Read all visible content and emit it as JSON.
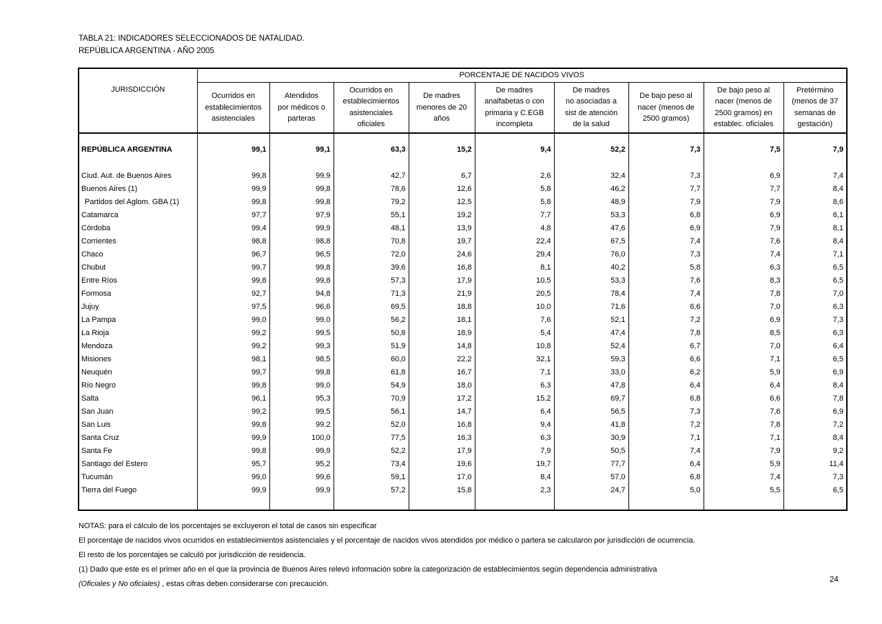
{
  "title": {
    "line1": "TABLA 21: INDICADORES SELECCIONADOS DE NATALIDAD.",
    "line2": "REPÚBLICA  ARGENTINA - AÑO 2005"
  },
  "table": {
    "col1_header": "JURISDICCIÓN",
    "group_header": "PORCENTAJE DE NACIDOS VIVOS",
    "columns": [
      "Ocurridos en\nestablecimientos\nasistenciales",
      "Atendidos\npor médicos o\nparteras",
      "Ocurridos en\nestablecimientos\nasistenciales\noficiales",
      "De madres\nmenores de 20\naños",
      "De madres\nanalfabetas o con\nprimaria y C.EGB\nincompleta",
      "De madres\nno asociadas a\nsist de atención\nde la salud",
      "De bajo peso al\nnacer (menos de\n2500 gramos)",
      "De bajo peso al\nnacer (menos de\n2500 gramos) en\nestablec. oficiales",
      "Pretérmino\n(menos de 37\nsemanas de\ngestación)"
    ],
    "total_row": {
      "label": "REPÚBLICA ARGENTINA",
      "values": [
        "99,1",
        "99,1",
        "63,3",
        "15,2",
        "9,4",
        "52,2",
        "7,3",
        "7,5",
        "7,9"
      ]
    },
    "rows": [
      {
        "label": "Ciud. Aut. de  Buenos Aires",
        "indent": false,
        "values": [
          "99,8",
          "99,9",
          "42,7",
          "6,7",
          "2,6",
          "32,4",
          "7,3",
          "6,9",
          "7,4"
        ]
      },
      {
        "label": "Buenos Aires (1)",
        "indent": false,
        "values": [
          "99,9",
          "99,8",
          "78,6",
          "12,6",
          "5,8",
          "46,2",
          "7,7",
          "7,7",
          "8,4"
        ]
      },
      {
        "label": "Partidos del Aglom. GBA (1)",
        "indent": true,
        "values": [
          "99,8",
          "99,8",
          "79,2",
          "12,5",
          "5,8",
          "48,9",
          "7,9",
          "7,9",
          "8,6"
        ]
      },
      {
        "label": "Catamarca",
        "indent": false,
        "values": [
          "97,7",
          "97,9",
          "55,1",
          "19,2",
          "7,7",
          "53,3",
          "6,8",
          "6,9",
          "6,1"
        ]
      },
      {
        "label": "Córdoba",
        "indent": false,
        "values": [
          "99,4",
          "99,9",
          "48,1",
          "13,9",
          "4,8",
          "47,6",
          "6,9",
          "7,9",
          "8,1"
        ]
      },
      {
        "label": "Corrientes",
        "indent": false,
        "values": [
          "98,8",
          "98,8",
          "70,8",
          "19,7",
          "22,4",
          "67,5",
          "7,4",
          "7,6",
          "8,4"
        ]
      },
      {
        "label": "Chaco",
        "indent": false,
        "values": [
          "96,7",
          "96,5",
          "72,0",
          "24,6",
          "29,4",
          "76,0",
          "7,3",
          "7,4",
          "7,1"
        ]
      },
      {
        "label": "Chubut",
        "indent": false,
        "values": [
          "99,7",
          "99,8",
          "39,6",
          "16,8",
          "8,1",
          "40,2",
          "5,8",
          "6,3",
          "6,5"
        ]
      },
      {
        "label": "Entre Ríos",
        "indent": false,
        "values": [
          "99,8",
          "99,8",
          "57,3",
          "17,9",
          "10,5",
          "53,3",
          "7,6",
          "8,3",
          "6,5"
        ]
      },
      {
        "label": "Formosa",
        "indent": false,
        "values": [
          "92,7",
          "94,8",
          "71,3",
          "21,9",
          "20,5",
          "78,4",
          "7,4",
          "7,8",
          "7,0"
        ]
      },
      {
        "label": "Jujuy",
        "indent": false,
        "values": [
          "97,5",
          "96,6",
          "69,5",
          "18,8",
          "10,0",
          "71,6",
          "6,6",
          "7,0",
          "6,3"
        ]
      },
      {
        "label": "La Pampa",
        "indent": false,
        "values": [
          "99,0",
          "99,0",
          "56,2",
          "18,1",
          "7,6",
          "52,1",
          "7,2",
          "6,9",
          "7,3"
        ]
      },
      {
        "label": "La Rioja",
        "indent": false,
        "values": [
          "99,2",
          "99,5",
          "50,8",
          "18,9",
          "5,4",
          "47,4",
          "7,8",
          "8,5",
          "6,3"
        ]
      },
      {
        "label": "Mendoza",
        "indent": false,
        "values": [
          "99,2",
          "99,3",
          "51,9",
          "14,8",
          "10,8",
          "52,4",
          "6,7",
          "7,0",
          "6,4"
        ]
      },
      {
        "label": "Misiones",
        "indent": false,
        "values": [
          "98,1",
          "98,5",
          "60,0",
          "22,2",
          "32,1",
          "59,3",
          "6,6",
          "7,1",
          "6,5"
        ]
      },
      {
        "label": "Neuquén",
        "indent": false,
        "values": [
          "99,7",
          "99,8",
          "61,8",
          "16,7",
          "7,1",
          "33,0",
          "6,2",
          "5,9",
          "6,9"
        ]
      },
      {
        "label": "Río Negro",
        "indent": false,
        "values": [
          "99,8",
          "99,0",
          "54,9",
          "18,0",
          "6,3",
          "47,8",
          "6,4",
          "6,4",
          "8,4"
        ]
      },
      {
        "label": "Salta",
        "indent": false,
        "values": [
          "96,1",
          "95,3",
          "70,9",
          "17,2",
          "15,2",
          "69,7",
          "6,8",
          "6,6",
          "7,8"
        ]
      },
      {
        "label": "San Juan",
        "indent": false,
        "values": [
          "99,2",
          "99,5",
          "56,1",
          "14,7",
          "6,4",
          "56,5",
          "7,3",
          "7,6",
          "6,9"
        ]
      },
      {
        "label": "San Luis",
        "indent": false,
        "values": [
          "99,8",
          "99,2",
          "52,0",
          "16,8",
          "9,4",
          "41,8",
          "7,2",
          "7,8",
          "7,2"
        ]
      },
      {
        "label": "Santa Cruz",
        "indent": false,
        "values": [
          "99,9",
          "100,0",
          "77,5",
          "16,3",
          "6,3",
          "30,9",
          "7,1",
          "7,1",
          "8,4"
        ]
      },
      {
        "label": "Santa Fe",
        "indent": false,
        "values": [
          "99,8",
          "99,9",
          "52,2",
          "17,9",
          "7,9",
          "50,5",
          "7,4",
          "7,9",
          "9,2"
        ]
      },
      {
        "label": "Santiago del Estero",
        "indent": false,
        "values": [
          "95,7",
          "95,2",
          "73,4",
          "19,6",
          "19,7",
          "77,7",
          "6,4",
          "5,9",
          "11,4"
        ]
      },
      {
        "label": "Tucumán",
        "indent": false,
        "values": [
          "99,0",
          "99,6",
          "59,1",
          "17,0",
          "8,4",
          "57,0",
          "6,8",
          "7,4",
          "7,3"
        ]
      },
      {
        "label": "Tierra del Fuego",
        "indent": false,
        "values": [
          "99,9",
          "99,9",
          "57,2",
          "15,8",
          "2,3",
          "24,7",
          "5,0",
          "5,5",
          "6,5"
        ]
      }
    ]
  },
  "notes": {
    "line1": "NOTAS: para el cálculo de los porcentajes se excluyeron el total de casos sin especificar",
    "line2": "El porcentaje de nacidos vivos ocurridos en establecimientos asistenciales y el porcentaje de nacidos vivos atendidos por médico o partera se calcularon por jurisdicción de ocurrencia.",
    "line3": "El resto de los porcentajes se calculó por jurisdicción de residencia.",
    "line4": "(1) Dado que este es el primer año en el que la provincia de Buenos Aires relevó información sobre la categorización de establecimientos según dependencia administrativa",
    "line5_italic": "(Oficiales y No oficiales)",
    "line5_rest": " , estas cifras deben considerarse con precaución."
  },
  "page_number": "24"
}
